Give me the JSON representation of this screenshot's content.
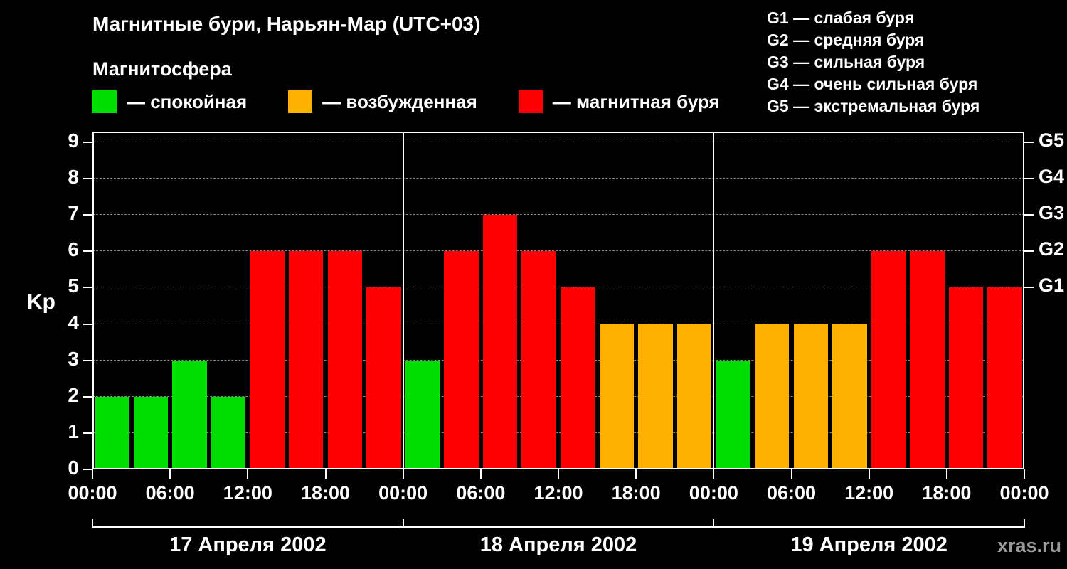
{
  "title": "Магнитные бури, Нарьян-Мар (UTC+03)",
  "subtitle": "Магнитосфера",
  "ylabel": "Kp",
  "watermark": "xras.ru",
  "colors": {
    "quiet": "#00dd00",
    "disturbed": "#ffb000",
    "storm": "#ff0000",
    "background": "#000000",
    "text": "#ffffff",
    "grid": "#888888"
  },
  "legend": [
    {
      "key": "quiet",
      "label": "— спокойная"
    },
    {
      "key": "disturbed",
      "label": "— возбужденная"
    },
    {
      "key": "storm",
      "label": "— магнитная буря"
    }
  ],
  "storm_scale_legend": [
    "G1 — слабая буря",
    "G2 — средняя буря",
    "G3 — сильная буря",
    "G4 — очень сильная буря",
    "G5 — экстремальная буря"
  ],
  "chart_data": {
    "type": "bar",
    "title": "Магнитные бури, Нарьян-Мар (UTC+03)",
    "ylabel": "Kp",
    "ylim": [
      0,
      9
    ],
    "yticks": [
      0,
      1,
      2,
      3,
      4,
      5,
      6,
      7,
      8,
      9
    ],
    "right_axis": [
      {
        "label": "G1",
        "kp": 5
      },
      {
        "label": "G2",
        "kp": 6
      },
      {
        "label": "G3",
        "kp": 7
      },
      {
        "label": "G4",
        "kp": 8
      },
      {
        "label": "G5",
        "kp": 9
      }
    ],
    "x_tick_labels": [
      "00:00",
      "06:00",
      "12:00",
      "18:00"
    ],
    "bar_interval_hours": 3,
    "color_rules": {
      "quiet_max_kp": 3,
      "disturbed_max_kp": 4
    },
    "days": [
      {
        "label": "17 Апреля 2002",
        "values": [
          2,
          2,
          3,
          2,
          6,
          6,
          6,
          5
        ]
      },
      {
        "label": "18 Апреля 2002",
        "values": [
          3,
          6,
          7,
          6,
          5,
          4,
          4,
          4
        ]
      },
      {
        "label": "19 Апреля 2002",
        "values": [
          3,
          4,
          4,
          4,
          6,
          6,
          5,
          5
        ]
      }
    ],
    "grid": true,
    "legend_position": "top"
  }
}
